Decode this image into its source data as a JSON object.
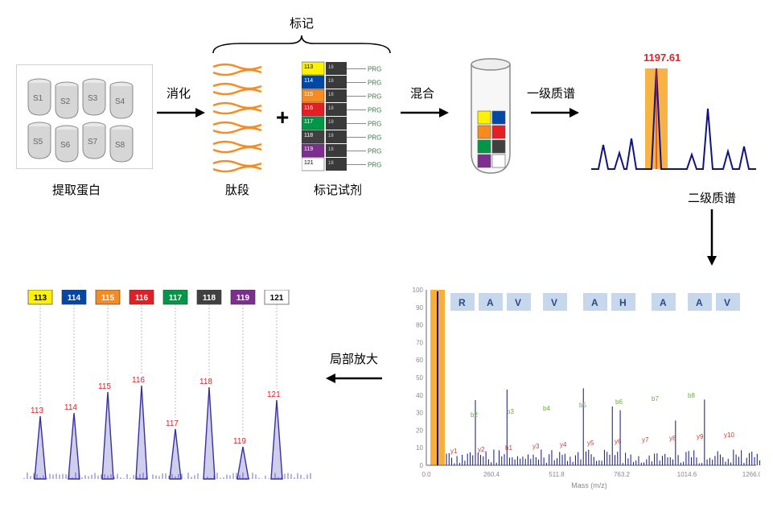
{
  "labels": {
    "extract_protein": "提取蛋白",
    "digest": "消化",
    "peptides": "肽段",
    "labeling": "标记",
    "labeling_reagents": "标记试剂",
    "mix": "混合",
    "ms1": "一级质谱",
    "ms2": "二级质谱",
    "zoom": "局部放大",
    "ms1_peak": "1197.61"
  },
  "samples": [
    "S1",
    "S2",
    "S3",
    "S4",
    "S5",
    "S6",
    "S7",
    "S8"
  ],
  "reagent_colors": [
    "#fff200",
    "#0048a5",
    "#f68b1f",
    "#e31e24",
    "#009846",
    "#404040",
    "#7d2e8e",
    "#ffffff"
  ],
  "reagent_left_labels": [
    "113",
    "114",
    "115",
    "116",
    "117",
    "118",
    "119",
    "121"
  ],
  "reagent_right_text": "PRG",
  "mix_tube_colors": [
    "#fff200",
    "#0048a5",
    "#f68b1f",
    "#e31e24",
    "#009846",
    "#404040",
    "#7d2e8e",
    "#ffffff"
  ],
  "ms1_chart": {
    "bg": "#ffffff",
    "highlight_band": "#f6a623",
    "peak_text_color": "#e31e24",
    "stroke": "#10147e"
  },
  "reporter_ions": {
    "colors": [
      "#fff200",
      "#0048a5",
      "#f68b1f",
      "#e31e24",
      "#009846",
      "#404040",
      "#7d2e8e",
      "#ffffff"
    ],
    "labels": [
      "113",
      "114",
      "115",
      "116",
      "117",
      "118",
      "119",
      "121"
    ],
    "text_colors": [
      "#000",
      "#fff",
      "#fff",
      "#fff",
      "#fff",
      "#fff",
      "#fff",
      "#000"
    ],
    "heights": [
      78,
      82,
      108,
      116,
      62,
      114,
      40,
      98
    ],
    "peak_text_color": "#e31e24",
    "stroke": "#3730a3"
  },
  "ms2_chart": {
    "sequence": [
      "R",
      "A",
      "V",
      "V",
      "A",
      "H",
      "A",
      "A",
      "V"
    ],
    "highlight_band": "#f6a623",
    "band_bg": "#b9cee8",
    "yaxis_ticks": [
      "0",
      "10",
      "20",
      "30",
      "40",
      "50",
      "60",
      "70",
      "80",
      "90",
      "100"
    ],
    "xaxis_ticks": [
      "0.0",
      "260.4",
      "511.8",
      "763.2",
      "1014.6",
      "1266.0"
    ],
    "xaxis_label": "Mass (m/z)",
    "b_ions": [
      "b2",
      "b3",
      "b4",
      "b5",
      "b6",
      "b7",
      "b8"
    ],
    "y_ions": [
      "y1",
      "y2",
      "b1",
      "y3",
      "y4",
      "y5",
      "y6",
      "y7",
      "y8",
      "y9",
      "y10"
    ]
  },
  "positions": {
    "font": 15
  }
}
